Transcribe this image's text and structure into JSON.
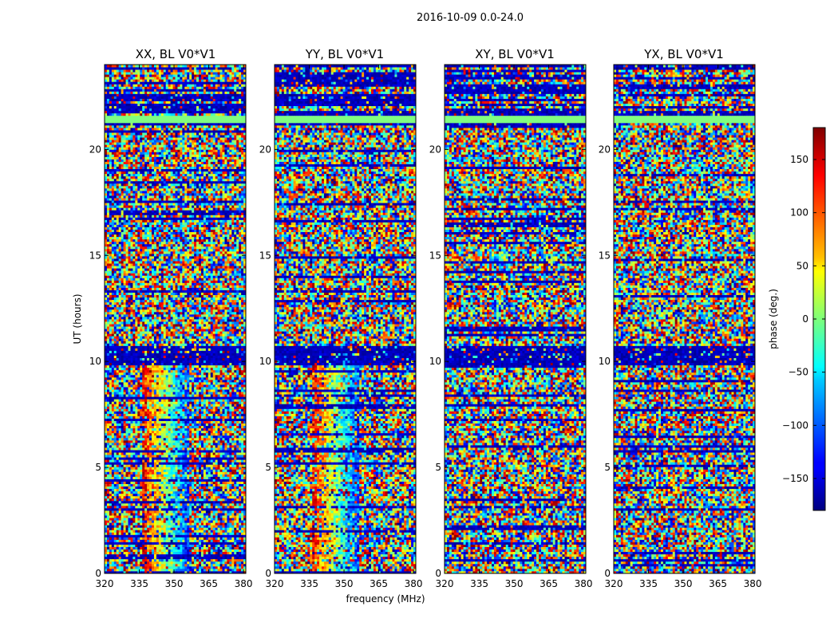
{
  "figure": {
    "suptitle": "2016-10-09 0.0-24.0"
  },
  "chart_data": {
    "type": "heatmap",
    "xlabel": "frequency (MHz)",
    "ylabel": "UT (hours)",
    "xlim": [
      320,
      381
    ],
    "ylim": [
      0,
      24
    ],
    "xticks": [
      "320",
      "335",
      "350",
      "365",
      "380"
    ],
    "yticks": [
      "0",
      "5",
      "10",
      "15",
      "20"
    ],
    "panels": [
      {
        "title": "XX, BL V0*V1"
      },
      {
        "title": "YY, BL V0*V1"
      },
      {
        "title": "XY, BL V0*V1"
      },
      {
        "title": "YX, BL V0*V1"
      }
    ],
    "colorbar": {
      "label": "phase (deg.)",
      "range": [
        -180,
        180
      ],
      "ticks": [
        "150",
        "100",
        "50",
        "0",
        "−50",
        "−100",
        "−150"
      ],
      "colormap": "jet"
    }
  }
}
